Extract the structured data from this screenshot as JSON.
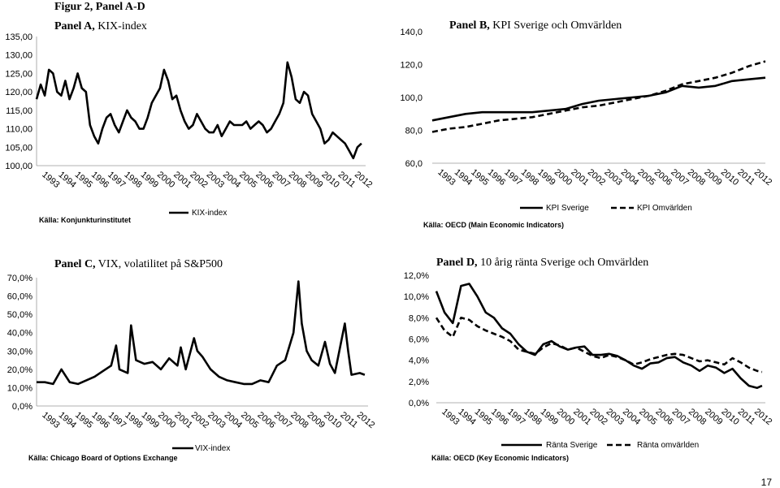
{
  "figure_title": "Figur 2, Panel A-D",
  "page_number": "17",
  "chart_data": [
    {
      "id": "A",
      "type": "line",
      "title_bold": "Panel A,",
      "title_rest": " KIX-index",
      "ylim": [
        100,
        135
      ],
      "y_ticks": [
        "100,00",
        "105,00",
        "110,00",
        "115,00",
        "120,00",
        "125,00",
        "130,00",
        "135,00"
      ],
      "x_ticks": [
        "1993",
        "1994",
        "1995",
        "1996",
        "1997",
        "1998",
        "1999",
        "2000",
        "2001",
        "2002",
        "2003",
        "2004",
        "2005",
        "2006",
        "2007",
        "2008",
        "2009",
        "2010",
        "2011",
        "2012"
      ],
      "x_range": [
        1993,
        2013
      ],
      "source": "Källa: Konjunkturinstitutet",
      "series": [
        {
          "name": "KIX-index",
          "dash": "solid",
          "t": [
            1993,
            1993.25,
            1993.5,
            1993.75,
            1994,
            1994.25,
            1994.5,
            1994.75,
            1995,
            1995.25,
            1995.5,
            1995.75,
            1996,
            1996.25,
            1996.5,
            1996.75,
            1997,
            1997.25,
            1997.5,
            1997.75,
            1998,
            1998.25,
            1998.5,
            1998.75,
            1999,
            1999.25,
            1999.5,
            1999.75,
            2000,
            2000.25,
            2000.5,
            2000.75,
            2001,
            2001.25,
            2001.5,
            2001.75,
            2002,
            2002.25,
            2002.5,
            2002.75,
            2003,
            2003.25,
            2003.5,
            2003.75,
            2004,
            2004.25,
            2004.5,
            2004.75,
            2005,
            2005.25,
            2005.5,
            2005.75,
            2006,
            2006.25,
            2006.5,
            2006.75,
            2007,
            2007.25,
            2007.5,
            2007.75,
            2008,
            2008.25,
            2008.5,
            2008.75,
            2009,
            2009.25,
            2009.5,
            2009.75,
            2010,
            2010.25,
            2010.5,
            2010.75,
            2011,
            2011.25,
            2011.5,
            2011.75,
            2012,
            2012.25,
            2012.5,
            2012.75
          ],
          "values": [
            118,
            122,
            119,
            126,
            125,
            120,
            119,
            123,
            118,
            121,
            125,
            121,
            120,
            111,
            108,
            106,
            110,
            113,
            114,
            111,
            109,
            112,
            115,
            113,
            112,
            110,
            110,
            113,
            117,
            119,
            121,
            126,
            123,
            118,
            119,
            115,
            112,
            110,
            111,
            114,
            112,
            110,
            109,
            109,
            111,
            108,
            110,
            112,
            111,
            111,
            111,
            112,
            110,
            111,
            112,
            111,
            109,
            110,
            112,
            114,
            117,
            128,
            124,
            118,
            117,
            120,
            119,
            114,
            112,
            110,
            106,
            107,
            109,
            108,
            107,
            106,
            104,
            102,
            105,
            106
          ]
        }
      ]
    },
    {
      "id": "B",
      "type": "line",
      "title_bold": "Panel B,",
      "title_rest": " KPI Sverige och Omvärlden",
      "ylim": [
        60,
        140
      ],
      "y_ticks": [
        "60,0",
        "80,0",
        "100,0",
        "120,0",
        "140,0"
      ],
      "x_ticks": [
        "1993",
        "1994",
        "1995",
        "1996",
        "1997",
        "1998",
        "1999",
        "2000",
        "2001",
        "2002",
        "2003",
        "2004",
        "2005",
        "2006",
        "2007",
        "2008",
        "2009",
        "2010",
        "2011",
        "2012"
      ],
      "x_range": [
        1993,
        2013
      ],
      "source": "Källa: OECD (Main Economic Indicators)",
      "series": [
        {
          "name": "KPI Sverige",
          "dash": "solid",
          "t": [
            1993,
            1994,
            1995,
            1996,
            1997,
            1998,
            1999,
            2000,
            2001,
            2002,
            2003,
            2004,
            2005,
            2006,
            2007,
            2008,
            2009,
            2010,
            2011,
            2012,
            2013
          ],
          "values": [
            86,
            88,
            90,
            91,
            91,
            91,
            91,
            92,
            93,
            96,
            98,
            99,
            100,
            101,
            103,
            107,
            106,
            107,
            110,
            111,
            112
          ]
        },
        {
          "name": "KPI Omvärlden",
          "dash": "dashed",
          "t": [
            1993,
            1994,
            1995,
            1996,
            1997,
            1998,
            1999,
            2000,
            2001,
            2002,
            2003,
            2004,
            2005,
            2006,
            2007,
            2008,
            2009,
            2010,
            2011,
            2012,
            2013
          ],
          "values": [
            79,
            81,
            82,
            84,
            86,
            87,
            88,
            90,
            92,
            94,
            95,
            97,
            99,
            101,
            104,
            108,
            110,
            112,
            115,
            119,
            122
          ]
        }
      ]
    },
    {
      "id": "C",
      "type": "line",
      "title_bold": "Panel C,",
      "title_rest": " VIX, volatilitet på S&P500",
      "ylim": [
        0,
        70
      ],
      "y_ticks": [
        "0,0%",
        "10,0%",
        "20,0%",
        "30,0%",
        "40,0%",
        "50,0%",
        "60,0%",
        "70,0%"
      ],
      "x_ticks": [
        "1993",
        "1994",
        "1995",
        "1996",
        "1997",
        "1998",
        "1999",
        "2000",
        "2001",
        "2002",
        "2003",
        "2004",
        "2005",
        "2006",
        "2007",
        "2008",
        "2009",
        "2010",
        "2011",
        "2012"
      ],
      "x_range": [
        1993,
        2013
      ],
      "source": "Källa: Chicago Board of Options Exchange",
      "series": [
        {
          "name": "VIX-index",
          "dash": "solid",
          "t": [
            1993,
            1993.5,
            1994,
            1994.5,
            1995,
            1995.5,
            1996,
            1996.5,
            1997,
            1997.5,
            1997.8,
            1998,
            1998.5,
            1998.7,
            1999,
            1999.5,
            2000,
            2000.5,
            2001,
            2001.5,
            2001.7,
            2002,
            2002.5,
            2002.7,
            2003,
            2003.5,
            2004,
            2004.5,
            2005,
            2005.5,
            2006,
            2006.5,
            2007,
            2007.5,
            2008,
            2008.5,
            2008.8,
            2009,
            2009.3,
            2009.6,
            2010,
            2010.4,
            2010.7,
            2011,
            2011.6,
            2011.8,
            2012,
            2012.5,
            2012.8
          ],
          "values": [
            13,
            13,
            12,
            20,
            13,
            12,
            14,
            16,
            19,
            22,
            33,
            20,
            18,
            44,
            25,
            23,
            24,
            20,
            26,
            22,
            32,
            20,
            37,
            30,
            27,
            20,
            16,
            14,
            13,
            12,
            12,
            14,
            13,
            22,
            25,
            40,
            68,
            45,
            30,
            25,
            22,
            35,
            23,
            18,
            45,
            30,
            17,
            18,
            17
          ]
        }
      ]
    },
    {
      "id": "D",
      "type": "line",
      "title_bold": "Panel D,",
      "title_rest": " 10 årig ränta Sverige och Omvärlden",
      "ylim": [
        0,
        12
      ],
      "y_ticks": [
        "0,0%",
        "2,0%",
        "4,0%",
        "6,0%",
        "8,0%",
        "10,0%",
        "12,0%"
      ],
      "x_ticks": [
        "1993",
        "1994",
        "1995",
        "1996",
        "1997",
        "1998",
        "1999",
        "2000",
        "2001",
        "2002",
        "2003",
        "2004",
        "2005",
        "2006",
        "2007",
        "2008",
        "2009",
        "2010",
        "2011",
        "2012"
      ],
      "x_range": [
        1993,
        2013
      ],
      "source": "Källa: OECD (Key Economic Indicators)",
      "series": [
        {
          "name": "Ränta Sverige",
          "dash": "solid",
          "t": [
            1993,
            1993.5,
            1994,
            1994.5,
            1995,
            1995.5,
            1996,
            1996.5,
            1997,
            1997.5,
            1998,
            1998.5,
            1999,
            1999.5,
            2000,
            2000.5,
            2001,
            2001.5,
            2002,
            2002.5,
            2003,
            2003.5,
            2004,
            2004.5,
            2005,
            2005.5,
            2006,
            2006.5,
            2007,
            2007.5,
            2008,
            2008.5,
            2009,
            2009.5,
            2010,
            2010.5,
            2011,
            2011.5,
            2012,
            2012.5,
            2012.8
          ],
          "values": [
            10.5,
            8.5,
            7.5,
            11,
            11.2,
            10,
            8.5,
            8,
            7,
            6.5,
            5.5,
            4.8,
            4.5,
            5.5,
            5.8,
            5.3,
            5,
            5.2,
            5.3,
            4.5,
            4.5,
            4.6,
            4.4,
            4,
            3.5,
            3.2,
            3.7,
            3.8,
            4.2,
            4.3,
            3.8,
            3.5,
            3,
            3.5,
            3.3,
            2.8,
            3.2,
            2.3,
            1.6,
            1.4,
            1.6
          ]
        },
        {
          "name": "Ränta omvärlden",
          "dash": "dashed",
          "t": [
            1993,
            1993.5,
            1994,
            1994.5,
            1995,
            1995.5,
            1996,
            1996.5,
            1997,
            1997.5,
            1998,
            1998.5,
            1999,
            1999.5,
            2000,
            2000.5,
            2001,
            2001.5,
            2002,
            2002.5,
            2003,
            2003.5,
            2004,
            2004.5,
            2005,
            2005.5,
            2006,
            2006.5,
            2007,
            2007.5,
            2008,
            2008.5,
            2009,
            2009.5,
            2010,
            2010.5,
            2011,
            2011.5,
            2012,
            2012.5,
            2012.8
          ],
          "values": [
            8,
            6.8,
            6.2,
            8,
            7.8,
            7.2,
            6.8,
            6.5,
            6.2,
            5.8,
            5,
            4.8,
            4.6,
            5.2,
            5.6,
            5.4,
            5,
            5.2,
            4.8,
            4.4,
            4.2,
            4.5,
            4.3,
            4,
            3.6,
            3.8,
            4.1,
            4.3,
            4.5,
            4.6,
            4.5,
            4.2,
            3.9,
            4,
            3.8,
            3.6,
            4.2,
            3.8,
            3.3,
            3,
            2.9
          ]
        }
      ]
    }
  ]
}
